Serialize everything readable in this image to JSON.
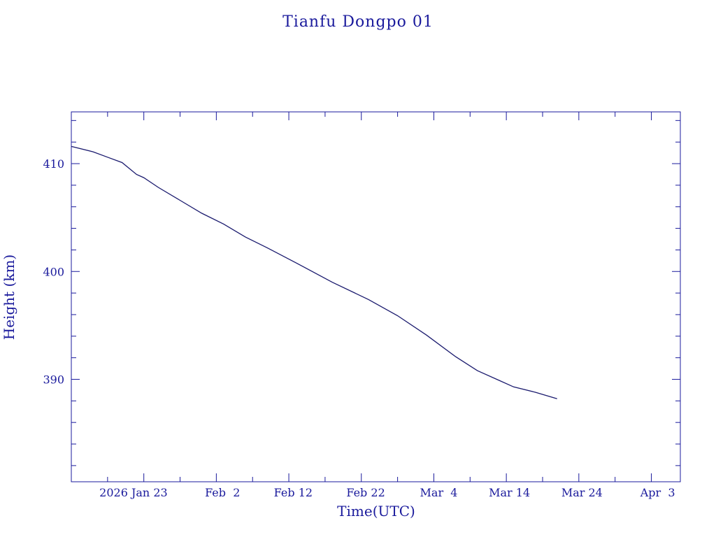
{
  "chart_data": {
    "type": "line",
    "title": "Tianfu Dongpo 01",
    "xlabel": "Time(UTC)",
    "ylabel": "Height (km)",
    "ylim": [
      380.5,
      414.8
    ],
    "xlim": [
      "2026-01-13",
      "2026-04-07"
    ],
    "x_tick_labels": [
      "2026 Jan 23",
      "Feb  2",
      "Feb 12",
      "Feb 22",
      "Mar  4",
      "Mar 14",
      "Mar 24",
      "Apr  3"
    ],
    "x_tick_dates": [
      "2026-01-23",
      "2026-02-02",
      "2026-02-12",
      "2026-02-22",
      "2026-03-04",
      "2026-03-14",
      "2026-03-24",
      "2026-04-03"
    ],
    "y_ticks": [
      390,
      400,
      410
    ],
    "y_tick_labels": [
      "390",
      "400",
      "410"
    ],
    "grid": false,
    "colors": {
      "axis": "#1a1a9c",
      "line": "#1a1a6e"
    },
    "series": [
      {
        "x": [
          "2026-01-13",
          "2026-01-16",
          "2026-01-18",
          "2026-01-20",
          "2026-01-22",
          "2026-01-23",
          "2026-01-25",
          "2026-01-28",
          "2026-01-31",
          "2026-02-03",
          "2026-02-06",
          "2026-02-09",
          "2026-02-13",
          "2026-02-18",
          "2026-02-23",
          "2026-02-27",
          "2026-03-03",
          "2026-03-07",
          "2026-03-10",
          "2026-03-13",
          "2026-03-15",
          "2026-03-18",
          "2026-03-21"
        ],
        "y": [
          411.6,
          411.1,
          410.6,
          410.1,
          409.0,
          408.7,
          407.8,
          406.6,
          405.4,
          404.4,
          403.2,
          402.2,
          400.8,
          399.0,
          397.4,
          395.9,
          394.1,
          392.1,
          390.8,
          389.9,
          389.3,
          388.8,
          388.2
        ]
      }
    ]
  }
}
